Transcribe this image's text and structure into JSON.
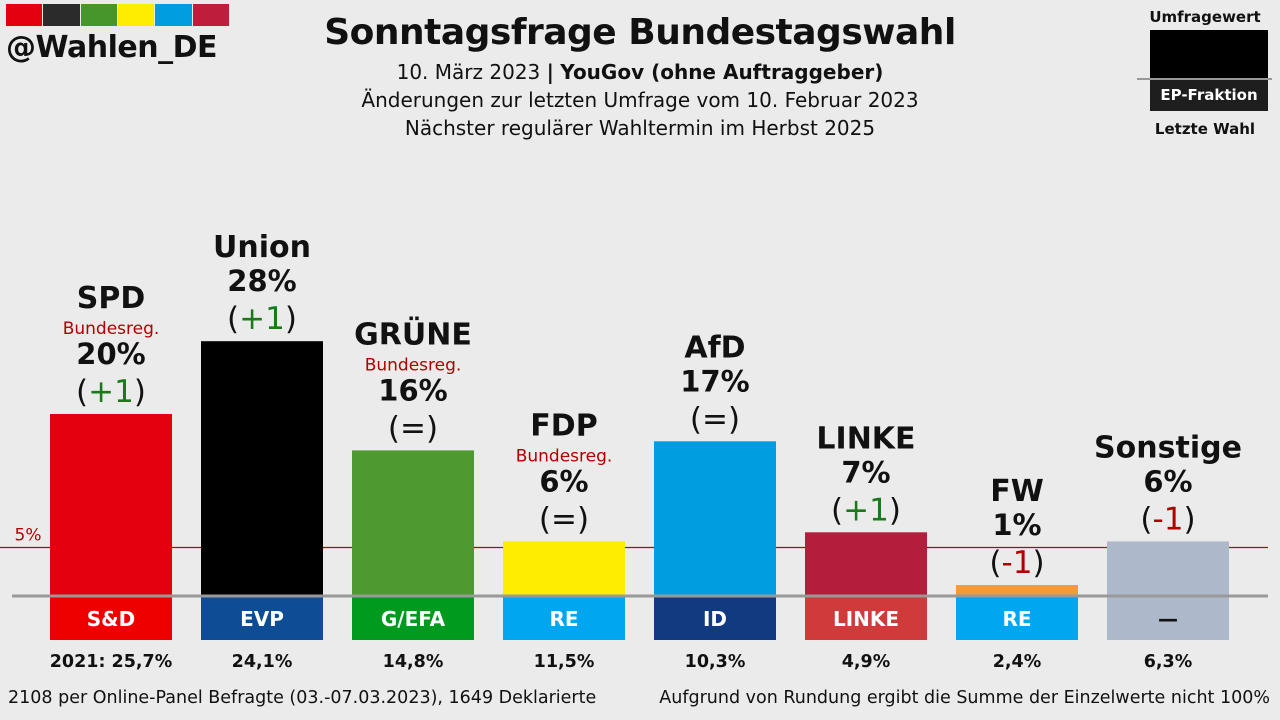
{
  "header": {
    "handle": "@Wahlen_DE",
    "strip_colors": [
      "#e3000f",
      "#2b2b2b",
      "#46962b",
      "#ffed00",
      "#009ee0",
      "#be1e3c"
    ],
    "title": "Sonntagsfrage Bundestagswahl",
    "date": "10. März 2023",
    "separator": "|",
    "institute": "YouGov (ohne Auftraggeber)",
    "changes_note": "Änderungen zur letzten Umfrage vom 10. Februar 2023",
    "next_election": "Nächster regulärer Wahltermin im Herbst 2025"
  },
  "legend": {
    "top": "Umfragewert",
    "middle": "EP-Fraktion",
    "bottom": "Letzte Wahl"
  },
  "chart_data": {
    "type": "bar",
    "title": "Sonntagsfrage Bundestagswahl",
    "threshold": {
      "label": "5%",
      "value": 5
    },
    "categories": [
      "SPD",
      "Union",
      "GRÜNE",
      "FDP",
      "AfD",
      "LINKE",
      "FW",
      "Sonstige"
    ],
    "values": [
      20,
      28,
      16,
      6,
      17,
      7,
      1,
      6
    ],
    "value_labels": [
      "20%",
      "28%",
      "16%",
      "6%",
      "17%",
      "7%",
      "1%",
      "6%"
    ],
    "changes": [
      "(+1)",
      "(+1)",
      "(=)",
      "(=)",
      "(=)",
      "(+1)",
      "(-1)",
      "(-1)"
    ],
    "change_direction": [
      "up",
      "up",
      "same",
      "same",
      "same",
      "up",
      "down",
      "down"
    ],
    "government_note": [
      "Bundesreg.",
      "",
      "Bundesreg.",
      "Bundesreg.",
      "",
      "",
      "",
      ""
    ],
    "colors": [
      "#e3000f",
      "#000000",
      "#4e9a2f",
      "#ffed00",
      "#009ee0",
      "#b41d3c",
      "#f39a3b",
      "#adb8cb"
    ],
    "ep_groups": [
      "S&D",
      "EVP",
      "G/EFA",
      "RE",
      "ID",
      "LINKE",
      "RE",
      "—"
    ],
    "ep_colors": [
      "#ee0000",
      "#0e4c96",
      "#009a1e",
      "#00a6f0",
      "#123a80",
      "#d13a3a",
      "#00a6f0",
      "#adb8cb"
    ],
    "ep_text_colors": [
      "#ffffff",
      "#ffffff",
      "#ffffff",
      "#ffffff",
      "#ffffff",
      "#ffffff",
      "#ffffff",
      "#111111"
    ],
    "last_election_prefix": "2021: ",
    "last_election": [
      "25,7%",
      "24,1%",
      "14,8%",
      "11,5%",
      "10,3%",
      "4,9%",
      "2,4%",
      "6,3%"
    ],
    "change_colors": {
      "up": "#1a7a1a",
      "down": "#b00000",
      "same": "#111111"
    },
    "note_color": "#b00000"
  },
  "footer": {
    "left": "2108 per Online-Panel Befragte (03.-07.03.2023), 1649 Deklarierte",
    "right": "Aufgrund von Rundung ergibt die Summe der Einzelwerte nicht 100%"
  }
}
